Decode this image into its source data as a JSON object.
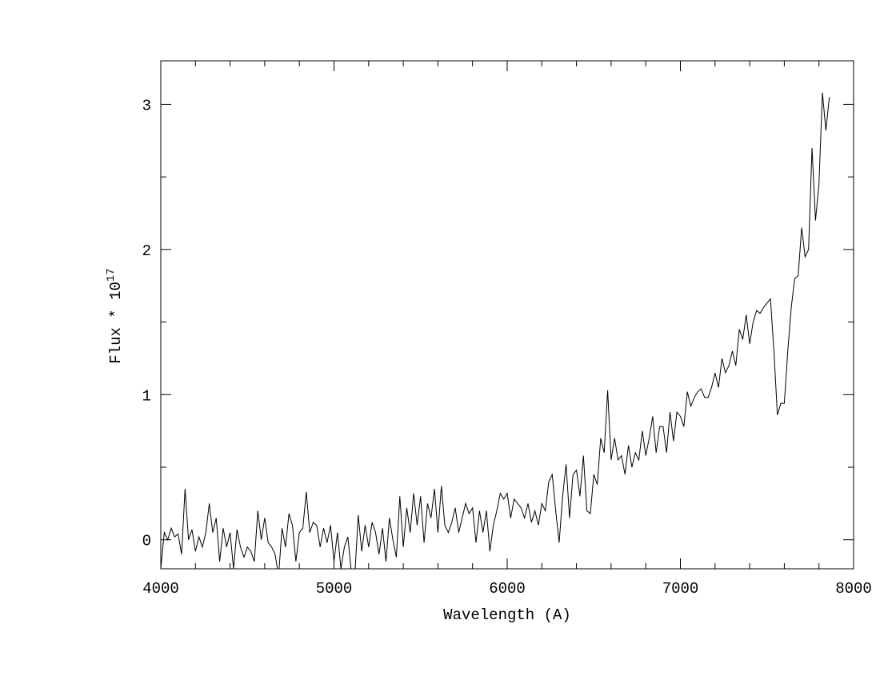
{
  "chart_data": {
    "type": "line",
    "xlabel": "Wavelength (A)",
    "ylabel": {
      "text": "Flux * 10",
      "superscript": "17"
    },
    "color": "#000000",
    "x": [
      4000,
      4020,
      4040,
      4060,
      4080,
      4100,
      4120,
      4140,
      4160,
      4180,
      4200,
      4220,
      4240,
      4260,
      4280,
      4300,
      4320,
      4340,
      4360,
      4380,
      4400,
      4420,
      4440,
      4460,
      4480,
      4500,
      4520,
      4540,
      4560,
      4580,
      4600,
      4620,
      4640,
      4660,
      4680,
      4700,
      4720,
      4740,
      4760,
      4780,
      4800,
      4820,
      4840,
      4860,
      4880,
      4900,
      4920,
      4940,
      4960,
      4980,
      5000,
      5020,
      5040,
      5060,
      5080,
      5100,
      5120,
      5140,
      5160,
      5180,
      5200,
      5220,
      5240,
      5260,
      5280,
      5300,
      5320,
      5340,
      5360,
      5380,
      5400,
      5420,
      5440,
      5460,
      5480,
      5500,
      5520,
      5540,
      5560,
      5580,
      5600,
      5620,
      5640,
      5660,
      5680,
      5700,
      5720,
      5740,
      5760,
      5780,
      5800,
      5820,
      5840,
      5860,
      5880,
      5900,
      5920,
      5940,
      5960,
      5980,
      6000,
      6020,
      6040,
      6060,
      6080,
      6100,
      6120,
      6140,
      6160,
      6180,
      6200,
      6220,
      6240,
      6260,
      6280,
      6300,
      6320,
      6340,
      6360,
      6380,
      6400,
      6420,
      6440,
      6460,
      6480,
      6500,
      6520,
      6540,
      6560,
      6580,
      6600,
      6620,
      6640,
      6660,
      6680,
      6700,
      6720,
      6740,
      6760,
      6780,
      6800,
      6820,
      6840,
      6860,
      6880,
      6900,
      6920,
      6940,
      6960,
      6980,
      7000,
      7020,
      7040,
      7060,
      7080,
      7100,
      7120,
      7140,
      7160,
      7180,
      7200,
      7220,
      7240,
      7260,
      7280,
      7300,
      7320,
      7340,
      7360,
      7380,
      7400,
      7420,
      7440,
      7460,
      7480,
      7500,
      7520,
      7540,
      7560,
      7580,
      7600,
      7620,
      7640,
      7660,
      7680,
      7700,
      7720,
      7740,
      7760,
      7780,
      7800,
      7820,
      7840,
      7860
    ],
    "values": [
      -0.2,
      0.05,
      0.0,
      0.08,
      0.02,
      0.04,
      -0.1,
      0.35,
      0.0,
      0.07,
      -0.08,
      0.02,
      -0.05,
      0.05,
      0.25,
      0.05,
      0.15,
      -0.15,
      0.08,
      -0.05,
      0.05,
      -0.2,
      0.07,
      -0.05,
      -0.12,
      -0.05,
      -0.08,
      -0.15,
      0.2,
      0.0,
      0.15,
      -0.02,
      -0.05,
      -0.1,
      -0.25,
      0.08,
      -0.05,
      0.18,
      0.1,
      -0.15,
      0.05,
      0.08,
      0.33,
      0.05,
      0.12,
      0.1,
      -0.05,
      0.08,
      -0.02,
      0.1,
      -0.15,
      0.05,
      -0.2,
      -0.05,
      0.02,
      -0.22,
      -0.25,
      0.17,
      -0.08,
      0.1,
      -0.05,
      0.12,
      0.05,
      -0.1,
      0.08,
      -0.15,
      0.15,
      0.0,
      -0.12,
      0.3,
      -0.05,
      0.22,
      0.05,
      0.32,
      0.1,
      0.3,
      -0.02,
      0.25,
      0.15,
      0.35,
      0.05,
      0.37,
      0.1,
      0.05,
      0.12,
      0.22,
      0.05,
      0.15,
      0.25,
      0.18,
      0.22,
      -0.02,
      0.2,
      0.05,
      0.2,
      -0.08,
      0.1,
      0.2,
      0.32,
      0.28,
      0.32,
      0.15,
      0.28,
      0.25,
      0.22,
      0.15,
      0.25,
      0.12,
      0.2,
      0.1,
      0.25,
      0.2,
      0.4,
      0.45,
      0.2,
      -0.02,
      0.3,
      0.52,
      0.15,
      0.45,
      0.48,
      0.3,
      0.58,
      0.2,
      0.18,
      0.45,
      0.38,
      0.7,
      0.6,
      1.03,
      0.55,
      0.7,
      0.55,
      0.58,
      0.45,
      0.65,
      0.5,
      0.6,
      0.55,
      0.75,
      0.58,
      0.7,
      0.85,
      0.6,
      0.78,
      0.78,
      0.6,
      0.88,
      0.68,
      0.88,
      0.85,
      0.78,
      1.02,
      0.92,
      0.98,
      1.02,
      1.04,
      0.98,
      0.98,
      1.05,
      1.15,
      1.05,
      1.25,
      1.15,
      1.2,
      1.3,
      1.2,
      1.45,
      1.38,
      1.55,
      1.35,
      1.5,
      1.58,
      1.56,
      1.6,
      1.63,
      1.66,
      1.3,
      0.86,
      0.94,
      0.94,
      1.3,
      1.6,
      1.8,
      1.82,
      2.15,
      1.95,
      2.0,
      2.7,
      2.2,
      2.45,
      3.08,
      2.82,
      3.05
    ],
    "xlim": [
      4000,
      8000
    ],
    "ylim": [
      -0.2,
      3.3
    ],
    "xticks": [
      4000,
      5000,
      6000,
      7000,
      8000
    ],
    "yticks": [
      0,
      1,
      2,
      3
    ],
    "xminorticks": [
      4200,
      4400,
      4600,
      4800,
      5200,
      5400,
      5600,
      5800,
      6200,
      6400,
      6600,
      6800,
      7200,
      7400,
      7600,
      7800
    ],
    "yminorticks": [
      0.5,
      1.5,
      2.5
    ],
    "grid": false
  }
}
